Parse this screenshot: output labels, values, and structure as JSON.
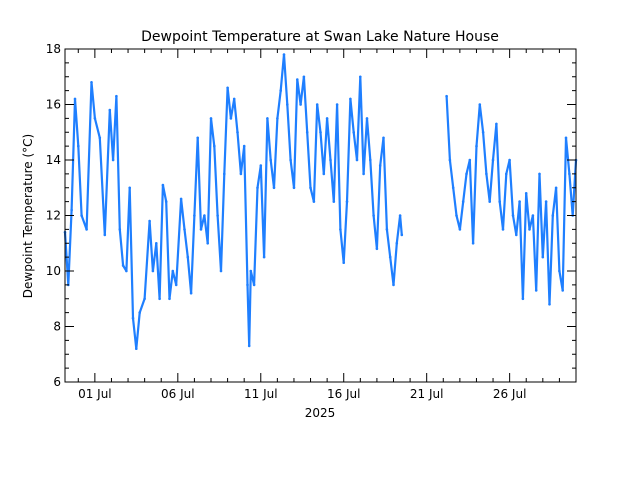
{
  "chart_data": {
    "type": "line",
    "title": "Dewpoint Temperature at Swan Lake Nature House",
    "ylabel": "Dewpoint Temperature (°C)",
    "xlabel": "2025",
    "ylim": [
      6,
      18
    ],
    "yticks": [
      6,
      8,
      10,
      12,
      14,
      16,
      18
    ],
    "xlim_day": [
      29.2,
      60
    ],
    "xticks": [
      {
        "day": 31,
        "label": "01 Jul"
      },
      {
        "day": 36,
        "label": "06 Jul"
      },
      {
        "day": 41,
        "label": "11 Jul"
      },
      {
        "day": 46,
        "label": "16 Jul"
      },
      {
        "day": 51,
        "label": "21 Jul"
      },
      {
        "day": 56,
        "label": "26 Jul"
      }
    ],
    "grid": false,
    "line_color": "#1f7fff",
    "series": [
      {
        "name": "",
        "points": [
          [
            29.2,
            11.4
          ],
          [
            29.4,
            9.5
          ],
          [
            29.6,
            12.2
          ],
          [
            29.8,
            16.2
          ],
          [
            30.0,
            14.5
          ],
          [
            30.2,
            12.0
          ],
          [
            30.5,
            11.5
          ],
          [
            30.8,
            16.8
          ],
          [
            31.0,
            15.5
          ],
          [
            31.3,
            14.8
          ],
          [
            31.6,
            11.3
          ],
          [
            31.9,
            15.8
          ],
          [
            32.1,
            14.0
          ],
          [
            32.3,
            16.3
          ],
          [
            32.5,
            11.5
          ],
          [
            32.7,
            10.2
          ],
          [
            32.9,
            10.0
          ],
          [
            33.1,
            13.0
          ],
          [
            33.3,
            8.3
          ],
          [
            33.5,
            7.2
          ],
          [
            33.7,
            8.5
          ],
          [
            34.0,
            9.0
          ],
          [
            34.3,
            11.8
          ],
          [
            34.5,
            10.0
          ],
          [
            34.7,
            11.0
          ],
          [
            34.9,
            9.0
          ],
          [
            35.1,
            13.1
          ],
          [
            35.3,
            12.5
          ],
          [
            35.5,
            9.0
          ],
          [
            35.7,
            10.0
          ],
          [
            35.9,
            9.5
          ],
          [
            36.2,
            12.6
          ],
          [
            36.4,
            11.5
          ],
          [
            36.6,
            10.5
          ],
          [
            36.8,
            9.2
          ],
          [
            37.0,
            12.0
          ],
          [
            37.2,
            14.8
          ],
          [
            37.4,
            11.5
          ],
          [
            37.6,
            12.0
          ],
          [
            37.8,
            11.0
          ],
          [
            38.0,
            15.5
          ],
          [
            38.2,
            14.5
          ],
          [
            38.4,
            12.0
          ],
          [
            38.6,
            10.0
          ],
          [
            38.8,
            13.5
          ],
          [
            39.0,
            16.6
          ],
          [
            39.2,
            15.5
          ],
          [
            39.4,
            16.2
          ],
          [
            39.6,
            15.0
          ],
          [
            39.8,
            13.5
          ],
          [
            40.0,
            14.5
          ],
          [
            40.2,
            9.5
          ],
          [
            40.3,
            7.3
          ],
          [
            40.4,
            10.0
          ],
          [
            40.6,
            9.5
          ],
          [
            40.8,
            13.0
          ],
          [
            41.0,
            13.8
          ],
          [
            41.2,
            10.5
          ],
          [
            41.4,
            15.5
          ],
          [
            41.6,
            14.0
          ],
          [
            41.8,
            13.0
          ],
          [
            42.0,
            15.5
          ],
          [
            42.2,
            16.5
          ],
          [
            42.4,
            17.8
          ],
          [
            42.6,
            16.0
          ],
          [
            42.8,
            14.0
          ],
          [
            43.0,
            13.0
          ],
          [
            43.2,
            16.9
          ],
          [
            43.4,
            16.0
          ],
          [
            43.6,
            17.0
          ],
          [
            43.8,
            15.0
          ],
          [
            44.0,
            13.0
          ],
          [
            44.2,
            12.5
          ],
          [
            44.4,
            16.0
          ],
          [
            44.6,
            15.0
          ],
          [
            44.8,
            13.5
          ],
          [
            45.0,
            15.5
          ],
          [
            45.2,
            14.0
          ],
          [
            45.4,
            12.5
          ],
          [
            45.6,
            16.0
          ],
          [
            45.8,
            11.5
          ],
          [
            46.0,
            10.3
          ],
          [
            46.2,
            12.5
          ],
          [
            46.4,
            16.2
          ],
          [
            46.6,
            15.0
          ],
          [
            46.8,
            14.0
          ],
          [
            47.0,
            17.0
          ],
          [
            47.2,
            13.5
          ],
          [
            47.4,
            15.5
          ],
          [
            47.6,
            14.0
          ],
          [
            47.8,
            12.0
          ],
          [
            48.0,
            10.8
          ],
          [
            48.2,
            13.8
          ],
          [
            48.4,
            14.8
          ],
          [
            48.6,
            11.5
          ],
          [
            48.8,
            10.5
          ],
          [
            49.0,
            9.5
          ],
          [
            49.2,
            11.0
          ],
          [
            49.4,
            12.0
          ],
          [
            49.5,
            11.3
          ]
        ]
      },
      {
        "name": "",
        "points": [
          [
            52.2,
            16.3
          ],
          [
            52.4,
            14.0
          ],
          [
            52.6,
            13.0
          ],
          [
            52.8,
            12.0
          ],
          [
            53.0,
            11.5
          ],
          [
            53.2,
            12.5
          ],
          [
            53.4,
            13.5
          ],
          [
            53.6,
            14.0
          ],
          [
            53.8,
            11.0
          ],
          [
            54.0,
            14.5
          ],
          [
            54.2,
            16.0
          ],
          [
            54.4,
            15.0
          ],
          [
            54.6,
            13.5
          ],
          [
            54.8,
            12.5
          ],
          [
            55.0,
            14.0
          ],
          [
            55.2,
            15.3
          ],
          [
            55.4,
            12.5
          ],
          [
            55.6,
            11.5
          ],
          [
            55.8,
            13.5
          ],
          [
            56.0,
            14.0
          ],
          [
            56.2,
            12.0
          ],
          [
            56.4,
            11.3
          ],
          [
            56.6,
            12.5
          ],
          [
            56.8,
            9.0
          ],
          [
            57.0,
            12.8
          ],
          [
            57.2,
            11.5
          ],
          [
            57.4,
            12.0
          ],
          [
            57.6,
            9.3
          ],
          [
            57.8,
            13.5
          ],
          [
            58.0,
            10.5
          ],
          [
            58.2,
            12.5
          ],
          [
            58.4,
            8.8
          ],
          [
            58.6,
            12.0
          ],
          [
            58.8,
            13.0
          ],
          [
            59.0,
            10.0
          ],
          [
            59.2,
            9.3
          ],
          [
            59.4,
            14.8
          ],
          [
            59.6,
            13.5
          ],
          [
            59.8,
            12.0
          ],
          [
            60.0,
            14.0
          ]
        ]
      }
    ]
  }
}
